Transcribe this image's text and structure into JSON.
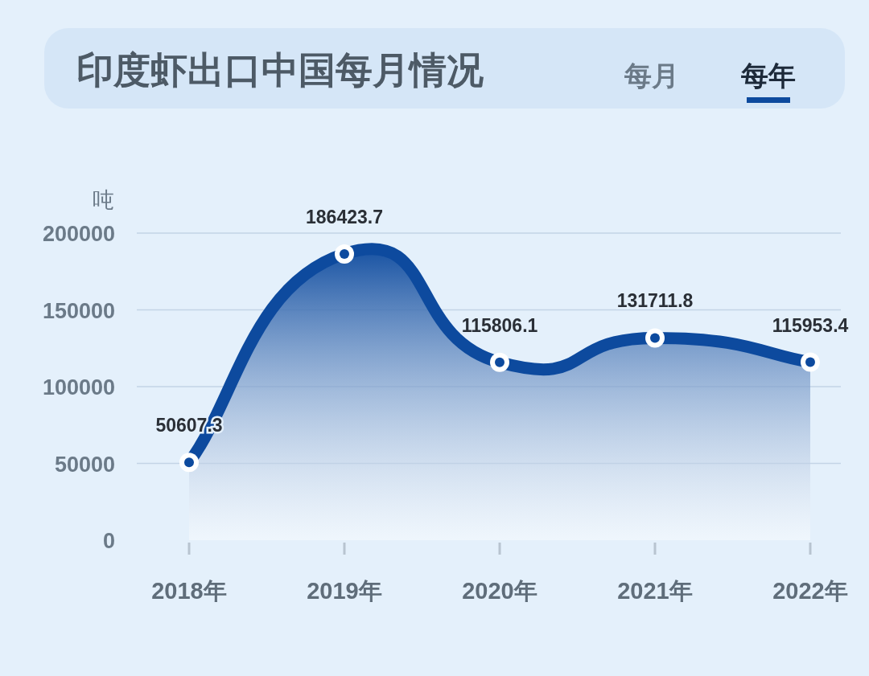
{
  "chart_data": {
    "type": "area",
    "title": "印度虾出口中国每月情况",
    "annotations": [
      "每月",
      "每年"
    ],
    "ylabel": "吨",
    "categories": [
      "2018年",
      "2019年",
      "2020年",
      "2021年",
      "2022年"
    ],
    "series": [
      {
        "color": "#0d4a9e",
        "values": [
          50607.3,
          186423.7,
          115806.1,
          131711.8,
          115953.4
        ]
      }
    ],
    "ylim": [
      0,
      200000
    ],
    "yticks": [
      0,
      50000,
      100000,
      150000,
      200000
    ],
    "grid": "y",
    "marker": "circle",
    "data_labels": true
  }
}
